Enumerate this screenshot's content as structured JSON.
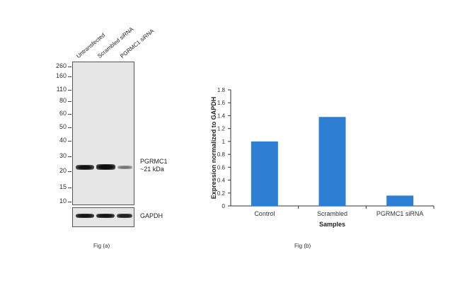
{
  "western_blot": {
    "lanes": [
      "Untransfected",
      "Scrambled siRNA",
      "PGRMC1 siRNA"
    ],
    "mw_markers": [
      "260",
      "160",
      "110",
      "80",
      "60",
      "50",
      "40",
      "30",
      "20",
      "15",
      "10"
    ],
    "target_label_line1": "PGRMC1",
    "target_label_line2": "~21 kDa",
    "loading_control": "GAPDH",
    "caption": "Fig (a)"
  },
  "chart_caption": "Fig (b)",
  "chart_data": {
    "type": "bar",
    "categories": [
      "Control",
      "Scrambled",
      "PGRMC1 siRNA"
    ],
    "values": [
      1.0,
      1.38,
      0.16
    ],
    "ylabel": "Expression  normalized to GAPDH",
    "xlabel": "Samples",
    "ylim": [
      0,
      1.8
    ],
    "yticks": [
      "0",
      "0.2",
      "0.4",
      "0.6",
      "0.8",
      "1",
      "1.2",
      "1.4",
      "1.6",
      "1.8"
    ],
    "bar_color": "#2e7fd4",
    "grid": false
  }
}
